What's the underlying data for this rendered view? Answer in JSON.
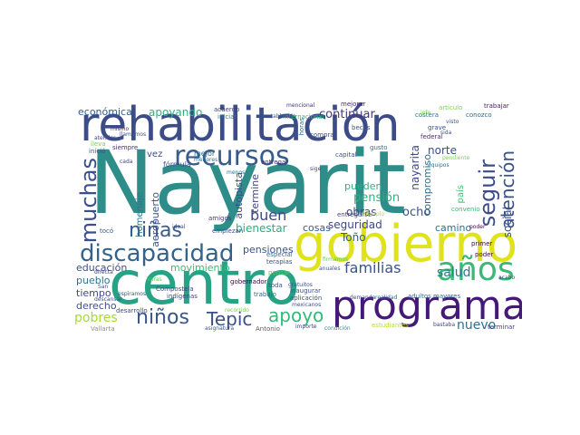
{
  "words": [
    {
      "text": "Nayarit",
      "color": "#2e8c89"
    },
    {
      "text": "rehabilitación",
      "color": "#3b4c87"
    },
    {
      "text": "gobierno",
      "color": "#e1e31a"
    },
    {
      "text": "centro",
      "color": "#25a384"
    },
    {
      "text": "programa",
      "color": "#451977"
    },
    {
      "text": "recursos",
      "color": "#375b8c"
    },
    {
      "text": "discapacidad",
      "color": "#33638d"
    },
    {
      "text": "muchas",
      "color": "#3c4f8a"
    },
    {
      "text": "años",
      "color": "#3ab876"
    },
    {
      "text": "seguir",
      "color": "#3d4d8a"
    },
    {
      "text": "atención",
      "color": "#3b518a"
    },
    {
      "text": "niñas",
      "color": "#375b8d"
    },
    {
      "text": "niños",
      "color": "#39578c"
    },
    {
      "text": "Tepic",
      "color": "#3c4f8a"
    },
    {
      "text": "apoyo",
      "color": "#33b979"
    },
    {
      "text": "familias",
      "color": "#3b528b"
    },
    {
      "text": "salud",
      "color": "#2a788e"
    },
    {
      "text": "pobres",
      "color": "#a7db33"
    },
    {
      "text": "buen",
      "color": "#3f4888"
    },
    {
      "text": "nuevo",
      "color": "#2d708e"
    },
    {
      "text": "económica",
      "color": "#365d8d"
    },
    {
      "text": "apoyando",
      "color": "#2db27d"
    },
    {
      "text": "continuar",
      "color": "#453781"
    },
    {
      "text": "norte",
      "color": "#3e4c8a"
    },
    {
      "text": "obras",
      "color": "#3f4788"
    },
    {
      "text": "pensión",
      "color": "#2db27d"
    },
    {
      "text": "ocho",
      "color": "#3b528b"
    },
    {
      "text": "seguridad",
      "color": "#404688"
    },
    {
      "text": "Toño",
      "color": "#365c8d"
    },
    {
      "text": "nayarita",
      "color": "#3f4a8a"
    },
    {
      "text": "compromiso",
      "color": "#2e6e8e"
    },
    {
      "text": "camino",
      "color": "#2e6f8e"
    },
    {
      "text": "social",
      "color": "#3b518b"
    },
    {
      "text": "pueden",
      "color": "#2db27d"
    },
    {
      "text": "bienestar",
      "color": "#29af7f"
    },
    {
      "text": "cosas",
      "color": "#365d8d"
    },
    {
      "text": "pensiones",
      "color": "#3b528b"
    },
    {
      "text": "educación",
      "color": "#3c508b"
    },
    {
      "text": "movimiento",
      "color": "#3cbc74"
    },
    {
      "text": "pueblo",
      "color": "#2a768e"
    },
    {
      "text": "tiempo",
      "color": "#3f4889"
    },
    {
      "text": "derecho",
      "color": "#3b528b"
    },
    {
      "text": "aeropuerto",
      "color": "#3a548c"
    },
    {
      "text": "autopista",
      "color": "#3e4a89"
    },
    {
      "text": "termine",
      "color": "#404588"
    },
    {
      "text": "homenaje",
      "color": "#2b758e"
    },
    {
      "text": "vez",
      "color": "#3e4989"
    },
    {
      "text": "mejor",
      "color": "#2e6e8e"
    },
    {
      "text": "país",
      "color": "#46c06f"
    },
    {
      "text": "Compostela",
      "color": "#414487"
    },
    {
      "text": "gobernador",
      "color": "#440154"
    },
    {
      "text": "trabajo",
      "color": "#31688e"
    },
    {
      "text": "adultos mayores",
      "color": "#2e6d8e"
    },
    {
      "text": "estudiantes",
      "color": "#b5de2b"
    },
    {
      "text": "indígenas",
      "color": "#3e4989"
    },
    {
      "text": "Vallarta",
      "color": "#8e8e8e"
    },
    {
      "text": "Antonio",
      "color": "#5d5d5d"
    },
    {
      "text": "desarrollo",
      "color": "#3e4989"
    },
    {
      "text": "entregarse",
      "color": "#414487"
    },
    {
      "text": "entregar",
      "color": "#46327e"
    },
    {
      "text": "convenio",
      "color": "#35b779"
    },
    {
      "text": "capital",
      "color": "#3b528b"
    },
    {
      "text": "gusto",
      "color": "#2c718e"
    },
    {
      "text": "costera",
      "color": "#2c728e"
    },
    {
      "text": "conozco",
      "color": "#31688e"
    },
    {
      "text": "trabajar",
      "color": "#48186a"
    },
    {
      "text": "artículo",
      "color": "#7ad151"
    },
    {
      "text": "acuerdo",
      "color": "#414487"
    },
    {
      "text": "iniciar",
      "color": "#2a788e"
    },
    {
      "text": "internacional",
      "color": "#35b779"
    },
    {
      "text": "mencional",
      "color": "#472f7d"
    },
    {
      "text": "mejorar",
      "color": "#482878"
    },
    {
      "text": "poder",
      "color": "#440154"
    },
    {
      "text": "primer",
      "color": "#440154"
    },
    {
      "text": "terminar",
      "color": "#414487"
    },
    {
      "text": "empiezan",
      "color": "#3b528b"
    },
    {
      "text": "amigos",
      "color": "#46327e"
    },
    {
      "text": "terapias",
      "color": "#3b528b"
    },
    {
      "text": "especial",
      "color": "#2c728e"
    },
    {
      "text": "toda",
      "color": "#3b528b"
    },
    {
      "text": "inaugurar",
      "color": "#3b528b"
    },
    {
      "text": "aplicación",
      "color": "#3b528b"
    },
    {
      "text": "condición",
      "color": "#21918c"
    },
    {
      "text": "asignatura",
      "color": "#3b528b"
    },
    {
      "text": "importe",
      "color": "#414487"
    },
    {
      "text": "mexicanos",
      "color": "#3b528b"
    },
    {
      "text": "bastaba",
      "color": "#414487"
    },
    {
      "text": "realidad",
      "color": "#31688e"
    },
    {
      "text": "demanda",
      "color": "#414487"
    },
    {
      "text": "federal",
      "color": "#482878"
    },
    {
      "text": "grave",
      "color": "#3b528b"
    },
    {
      "text": "equipos",
      "color": "#2c728e"
    },
    {
      "text": "becas",
      "color": "#3b528b"
    },
    {
      "text": "comprar",
      "color": "#414487"
    },
    {
      "text": "horas",
      "color": "#31688e"
    },
    {
      "text": "establecido",
      "color": "#3b528b"
    },
    {
      "text": "fórmula",
      "color": "#3b528b"
    },
    {
      "text": "menores",
      "color": "#2c728e"
    },
    {
      "text": "llamamos",
      "color": "#3b528b"
    },
    {
      "text": "mismo",
      "color": "#472f7d"
    },
    {
      "text": "siempre",
      "color": "#46327e"
    },
    {
      "text": "inició",
      "color": "#3b528b"
    },
    {
      "text": "atender",
      "color": "#414487"
    },
    {
      "text": "lleva",
      "color": "#7ad151"
    },
    {
      "text": "cada",
      "color": "#414487"
    },
    {
      "text": "sige",
      "color": "#414487"
    },
    {
      "text": "menos",
      "color": "#2c728e"
    },
    {
      "text": "ideal",
      "color": "#3b528b"
    },
    {
      "text": "tocó",
      "color": "#3b528b"
    },
    {
      "text": "San",
      "color": "#3b528b"
    },
    {
      "text": "Varas",
      "color": "#5ec962"
    },
    {
      "text": "descansar",
      "color": "#3b528b"
    },
    {
      "text": "directa",
      "color": "#414487"
    },
    {
      "text": "espiramos",
      "color": "#3b528b"
    },
    {
      "text": "recorrido",
      "color": "#7ad151"
    },
    {
      "text": "pensar",
      "color": "#5ec962"
    },
    {
      "text": "anuales",
      "color": "#3b528b"
    },
    {
      "text": "firmamos",
      "color": "#5ec962"
    },
    {
      "text": "gratuitos",
      "color": "#3b528b"
    },
    {
      "text": "jefe",
      "color": "#7ad151"
    },
    {
      "text": "poder",
      "color": "#440154"
    },
    {
      "text": "pendiente",
      "color": "#7ad151"
    },
    {
      "text": "sida",
      "color": "#3b528b"
    },
    {
      "text": "visto",
      "color": "#3b528b"
    },
    {
      "text": "acabo",
      "color": "#414487"
    },
    {
      "text": "ejemplo",
      "color": "#b5de2b"
    }
  ]
}
